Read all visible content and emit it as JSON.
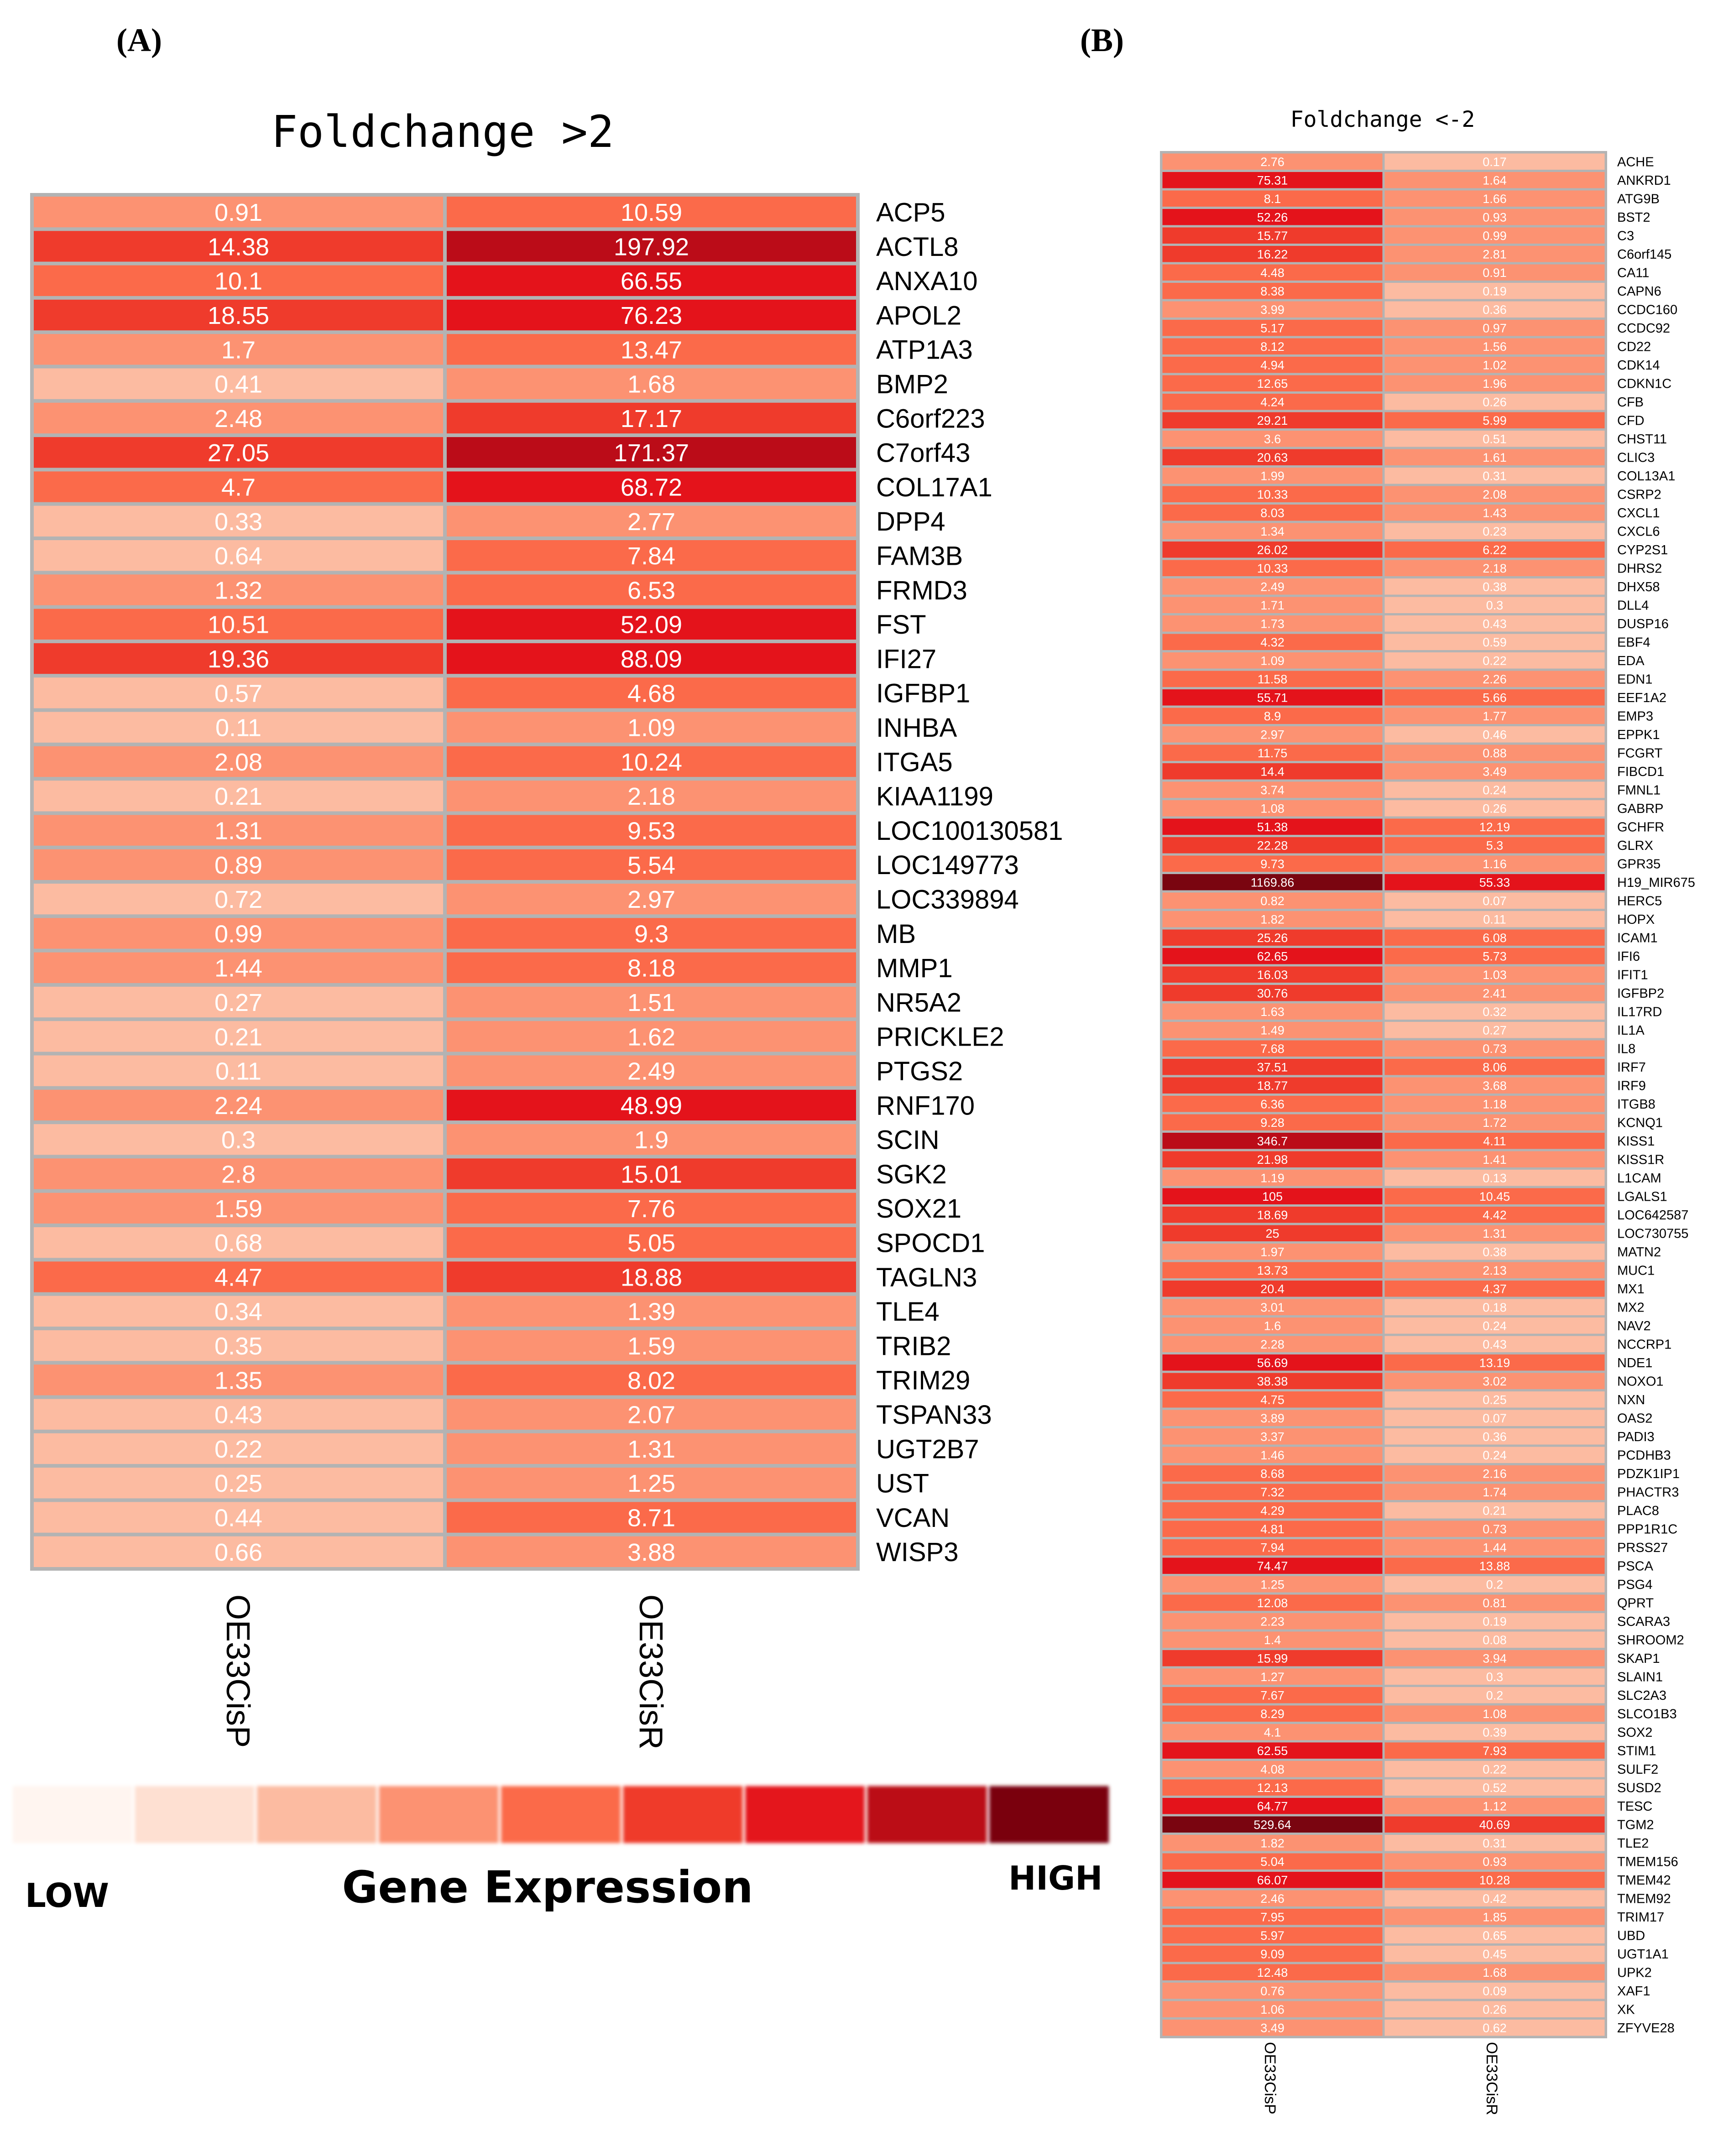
{
  "panel_a": {
    "label": "(A)",
    "title": "Foldchange >2",
    "columns": [
      "OE33CisP",
      "OE33CisR"
    ]
  },
  "panel_b": {
    "label": "(B)",
    "title": "Foldchange <-2",
    "columns": [
      "OE33CisP",
      "OE33CisR"
    ]
  },
  "legend": {
    "low_label": "LOW",
    "title": "Gene Expression",
    "high_label": "HIGH",
    "colors": [
      "#fff5f0",
      "#fee0d2",
      "#fcbba1",
      "#fc9272",
      "#fb6a4a",
      "#ef3b2c",
      "#e4131b",
      "#bb0c18",
      "#7a0510"
    ]
  },
  "chart_data": [
    {
      "type": "heatmap",
      "title": "Foldchange >2",
      "columns": [
        "OE33CisP",
        "OE33CisR"
      ],
      "genes": [
        "ACP5",
        "ACTL8",
        "ANXA10",
        "APOL2",
        "ATP1A3",
        "BMP2",
        "C6orf223",
        "C7orf43",
        "COL17A1",
        "DPP4",
        "FAM3B",
        "FRMD3",
        "FST",
        "IFI27",
        "IGFBP1",
        "INHBA",
        "ITGA5",
        "KIAA1199",
        "LOC100130581",
        "LOC149773",
        "LOC339894",
        "MB",
        "MMP1",
        "NR5A2",
        "PRICKLE2",
        "PTGS2",
        "RNF170",
        "SCIN",
        "SGK2",
        "SOX21",
        "SPOCD1",
        "TAGLN3",
        "TLE4",
        "TRIB2",
        "TRIM29",
        "TSPAN33",
        "UGT2B7",
        "UST",
        "VCAN",
        "WISP3"
      ],
      "values": [
        [
          "0.91",
          "10.59"
        ],
        [
          "14.38",
          "197.92"
        ],
        [
          "10.1",
          "66.55"
        ],
        [
          "18.55",
          "76.23"
        ],
        [
          "1.7",
          "13.47"
        ],
        [
          "0.41",
          "1.68"
        ],
        [
          "2.48",
          "17.17"
        ],
        [
          "27.05",
          "171.37"
        ],
        [
          "4.7",
          "68.72"
        ],
        [
          "0.33",
          "2.77"
        ],
        [
          "0.64",
          "7.84"
        ],
        [
          "1.32",
          "6.53"
        ],
        [
          "10.51",
          "52.09"
        ],
        [
          "19.36",
          "88.09"
        ],
        [
          "0.57",
          "4.68"
        ],
        [
          "0.11",
          "1.09"
        ],
        [
          "2.08",
          "10.24"
        ],
        [
          "0.21",
          "2.18"
        ],
        [
          "1.31",
          "9.53"
        ],
        [
          "0.89",
          "5.54"
        ],
        [
          "0.72",
          "2.97"
        ],
        [
          "0.99",
          "9.3"
        ],
        [
          "1.44",
          "8.18"
        ],
        [
          "0.27",
          "1.51"
        ],
        [
          "0.21",
          "1.62"
        ],
        [
          "0.11",
          "2.49"
        ],
        [
          "2.24",
          "48.99"
        ],
        [
          "0.3",
          "1.9"
        ],
        [
          "2.8",
          "15.01"
        ],
        [
          "1.59",
          "7.76"
        ],
        [
          "0.68",
          "5.05"
        ],
        [
          "4.47",
          "18.88"
        ],
        [
          "0.34",
          "1.39"
        ],
        [
          "0.35",
          "1.59"
        ],
        [
          "1.35",
          "8.02"
        ],
        [
          "0.43",
          "2.07"
        ],
        [
          "0.22",
          "1.31"
        ],
        [
          "0.25",
          "1.25"
        ],
        [
          "0.44",
          "8.71"
        ],
        [
          "0.66",
          "3.88"
        ]
      ]
    },
    {
      "type": "heatmap",
      "title": "Foldchange <-2",
      "columns": [
        "OE33CisP",
        "OE33CisR"
      ],
      "genes": [
        "ACHE",
        "ANKRD1",
        "ATG9B",
        "BST2",
        "C3",
        "C6orf145",
        "CA11",
        "CAPN6",
        "CCDC160",
        "CCDC92",
        "CD22",
        "CDK14",
        "CDKN1C",
        "CFB",
        "CFD",
        "CHST11",
        "CLIC3",
        "COL13A1",
        "CSRP2",
        "CXCL1",
        "CXCL6",
        "CYP2S1",
        "DHRS2",
        "DHX58",
        "DLL4",
        "DUSP16",
        "EBF4",
        "EDA",
        "EDN1",
        "EEF1A2",
        "EMP3",
        "EPPK1",
        "FCGRT",
        "FIBCD1",
        "FMNL1",
        "GABRP",
        "GCHFR",
        "GLRX",
        "GPR35",
        "H19_MIR675",
        "HERC5",
        "HOPX",
        "ICAM1",
        "IFI6",
        "IFIT1",
        "IGFBP2",
        "IL17RD",
        "IL1A",
        "IL8",
        "IRF7",
        "IRF9",
        "ITGB8",
        "KCNQ1",
        "KISS1",
        "KISS1R",
        "L1CAM",
        "LGALS1",
        "LOC642587",
        "LOC730755",
        "MATN2",
        "MUC1",
        "MX1",
        "MX2",
        "NAV2",
        "NCCRP1",
        "NDE1",
        "NOXO1",
        "NXN",
        "OAS2",
        "PADI3",
        "PCDHB3",
        "PDZK1IP1",
        "PHACTR3",
        "PLAC8",
        "PPP1R1C",
        "PRSS27",
        "PSCA",
        "PSG4",
        "QPRT",
        "SCARA3",
        "SHROOM2",
        "SKAP1",
        "SLAIN1",
        "SLC2A3",
        "SLCO1B3",
        "SOX2",
        "STIM1",
        "SULF2",
        "SUSD2",
        "TESC",
        "TGM2",
        "TLE2",
        "TMEM156",
        "TMEM42",
        "TMEM92",
        "TRIM17",
        "UBD",
        "UGT1A1",
        "UPK2",
        "XAF1",
        "XK",
        "ZFYVE28"
      ],
      "values": [
        [
          "2.76",
          "0.17"
        ],
        [
          "75.31",
          "1.64"
        ],
        [
          "8.1",
          "1.66"
        ],
        [
          "52.26",
          "0.93"
        ],
        [
          "15.77",
          "0.99"
        ],
        [
          "16.22",
          "2.81"
        ],
        [
          "4.48",
          "0.91"
        ],
        [
          "8.38",
          "0.19"
        ],
        [
          "3.99",
          "0.36"
        ],
        [
          "5.17",
          "0.97"
        ],
        [
          "8.12",
          "1.56"
        ],
        [
          "4.94",
          "1.02"
        ],
        [
          "12.65",
          "1.96"
        ],
        [
          "4.24",
          "0.26"
        ],
        [
          "29.21",
          "5.99"
        ],
        [
          "3.6",
          "0.51"
        ],
        [
          "20.63",
          "1.61"
        ],
        [
          "1.99",
          "0.31"
        ],
        [
          "10.33",
          "2.08"
        ],
        [
          "8.03",
          "1.43"
        ],
        [
          "1.34",
          "0.23"
        ],
        [
          "26.02",
          "6.22"
        ],
        [
          "10.33",
          "2.18"
        ],
        [
          "2.49",
          "0.38"
        ],
        [
          "1.71",
          "0.3"
        ],
        [
          "1.73",
          "0.43"
        ],
        [
          "4.32",
          "0.59"
        ],
        [
          "1.09",
          "0.22"
        ],
        [
          "11.58",
          "2.26"
        ],
        [
          "55.71",
          "5.66"
        ],
        [
          "8.9",
          "1.77"
        ],
        [
          "2.97",
          "0.46"
        ],
        [
          "11.75",
          "0.88"
        ],
        [
          "14.4",
          "3.49"
        ],
        [
          "3.74",
          "0.24"
        ],
        [
          "1.08",
          "0.26"
        ],
        [
          "51.38",
          "12.19"
        ],
        [
          "22.28",
          "5.3"
        ],
        [
          "9.73",
          "1.16"
        ],
        [
          "1169.86",
          "55.33"
        ],
        [
          "0.82",
          "0.07"
        ],
        [
          "1.82",
          "0.11"
        ],
        [
          "25.26",
          "6.08"
        ],
        [
          "62.65",
          "5.73"
        ],
        [
          "16.03",
          "1.03"
        ],
        [
          "30.76",
          "2.41"
        ],
        [
          "1.63",
          "0.32"
        ],
        [
          "1.49",
          "0.27"
        ],
        [
          "7.68",
          "0.73"
        ],
        [
          "37.51",
          "8.06"
        ],
        [
          "18.77",
          "3.68"
        ],
        [
          "6.36",
          "1.18"
        ],
        [
          "9.28",
          "1.72"
        ],
        [
          "346.7",
          "4.11"
        ],
        [
          "21.98",
          "1.41"
        ],
        [
          "1.19",
          "0.13"
        ],
        [
          "105",
          "10.45"
        ],
        [
          "18.69",
          "4.42"
        ],
        [
          "25",
          "1.31"
        ],
        [
          "1.97",
          "0.38"
        ],
        [
          "13.73",
          "2.13"
        ],
        [
          "20.4",
          "4.37"
        ],
        [
          "3.01",
          "0.18"
        ],
        [
          "1.6",
          "0.24"
        ],
        [
          "2.28",
          "0.43"
        ],
        [
          "56.69",
          "13.19"
        ],
        [
          "38.38",
          "3.02"
        ],
        [
          "4.75",
          "0.25"
        ],
        [
          "3.89",
          "0.07"
        ],
        [
          "3.37",
          "0.36"
        ],
        [
          "1.46",
          "0.24"
        ],
        [
          "8.68",
          "2.16"
        ],
        [
          "7.32",
          "1.74"
        ],
        [
          "4.29",
          "0.21"
        ],
        [
          "4.81",
          "0.73"
        ],
        [
          "7.94",
          "1.44"
        ],
        [
          "74.47",
          "13.88"
        ],
        [
          "1.25",
          "0.2"
        ],
        [
          "12.08",
          "0.81"
        ],
        [
          "2.23",
          "0.19"
        ],
        [
          "1.4",
          "0.08"
        ],
        [
          "15.99",
          "3.94"
        ],
        [
          "1.27",
          "0.3"
        ],
        [
          "7.67",
          "0.2"
        ],
        [
          "8.29",
          "1.08"
        ],
        [
          "4.1",
          "0.39"
        ],
        [
          "62.55",
          "7.93"
        ],
        [
          "4.08",
          "0.22"
        ],
        [
          "12.13",
          "0.52"
        ],
        [
          "64.77",
          "1.12"
        ],
        [
          "529.64",
          "40.69"
        ],
        [
          "1.82",
          "0.31"
        ],
        [
          "5.04",
          "0.93"
        ],
        [
          "66.07",
          "10.28"
        ],
        [
          "2.46",
          "0.42"
        ],
        [
          "7.95",
          "1.85"
        ],
        [
          "5.97",
          "0.65"
        ],
        [
          "9.09",
          "0.45"
        ],
        [
          "12.48",
          "1.68"
        ],
        [
          "0.76",
          "0.09"
        ],
        [
          "1.06",
          "0.26"
        ],
        [
          "3.49",
          "0.62"
        ]
      ]
    }
  ]
}
